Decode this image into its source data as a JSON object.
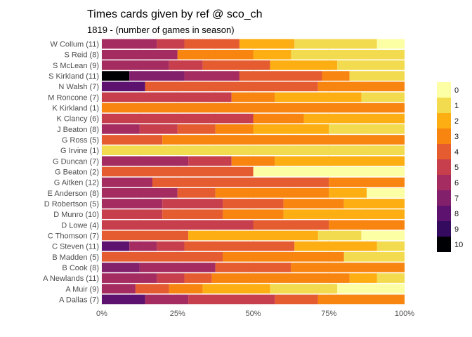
{
  "chart_data": {
    "type": "bar",
    "orientation": "horizontal",
    "stacked": true,
    "normalized": true,
    "title": "Times cards given by ref @ sco_ch",
    "subtitle": "1819 - (number of games in season)",
    "xlabel": "",
    "ylabel": "",
    "xlim": [
      0,
      100
    ],
    "x_ticks": [
      "0%",
      "25%",
      "50%",
      "75%",
      "100%"
    ],
    "grid": true,
    "legend_position": "right",
    "legend_title": "",
    "legend": [
      "0",
      "1",
      "2",
      "3",
      "4",
      "5",
      "6",
      "7",
      "8",
      "9",
      "10"
    ],
    "colors": {
      "0": "#fcffa4",
      "1": "#f3db4f",
      "2": "#fcae12",
      "3": "#f8850f",
      "4": "#e55c30",
      "5": "#c73e4c",
      "6": "#a52c60",
      "7": "#82206c",
      "8": "#5c126e",
      "9": "#340a5f",
      "10": "#000004"
    },
    "categories": [
      "W Collum (11)",
      "S Reid (8)",
      "S McLean (9)",
      "S Kirkland (11)",
      "N Walsh (7)",
      "M Roncone (7)",
      "K Kirkland (1)",
      "K Clancy (6)",
      "J Beaton (8)",
      "G Ross (5)",
      "G Irvine (1)",
      "G Duncan (7)",
      "G Beaton (2)",
      "G Aitken (12)",
      "E Anderson (8)",
      "D Robertson (5)",
      "D Munro (10)",
      "D Lowe (4)",
      "C Thomson (7)",
      "C Steven (11)",
      "B Madden (5)",
      "B Cook (8)",
      "A Newlands (11)",
      "A Muir (9)",
      "A Dallas (7)"
    ],
    "rows": [
      {
        "category": "W Collum (11)",
        "segments": [
          {
            "cards": 6,
            "pct": 18.2
          },
          {
            "cards": 5,
            "pct": 9.1
          },
          {
            "cards": 4,
            "pct": 18.2
          },
          {
            "cards": 2,
            "pct": 18.2
          },
          {
            "cards": 1,
            "pct": 27.3
          },
          {
            "cards": 0,
            "pct": 9.1
          }
        ]
      },
      {
        "category": "S Reid (8)",
        "segments": [
          {
            "cards": 6,
            "pct": 25
          },
          {
            "cards": 3,
            "pct": 25
          },
          {
            "cards": 2,
            "pct": 12.5
          },
          {
            "cards": 1,
            "pct": 37.5
          }
        ]
      },
      {
        "category": "S McLean (9)",
        "segments": [
          {
            "cards": 6,
            "pct": 22.2
          },
          {
            "cards": 5,
            "pct": 11.1
          },
          {
            "cards": 4,
            "pct": 22.2
          },
          {
            "cards": 2,
            "pct": 22.2
          },
          {
            "cards": 1,
            "pct": 22.2
          }
        ]
      },
      {
        "category": "S Kirkland (11)",
        "segments": [
          {
            "cards": 10,
            "pct": 9.1
          },
          {
            "cards": 7,
            "pct": 18.2
          },
          {
            "cards": 6,
            "pct": 18.2
          },
          {
            "cards": 4,
            "pct": 27.3
          },
          {
            "cards": 3,
            "pct": 9.1
          },
          {
            "cards": 1,
            "pct": 18.2
          }
        ]
      },
      {
        "category": "N Walsh (7)",
        "segments": [
          {
            "cards": 8,
            "pct": 14.3
          },
          {
            "cards": 4,
            "pct": 57.1
          },
          {
            "cards": 3,
            "pct": 28.6
          }
        ]
      },
      {
        "category": "M Roncone (7)",
        "segments": [
          {
            "cards": 5,
            "pct": 42.9
          },
          {
            "cards": 3,
            "pct": 14.3
          },
          {
            "cards": 2,
            "pct": 28.6
          },
          {
            "cards": 1,
            "pct": 14.3
          }
        ]
      },
      {
        "category": "K Kirkland (1)",
        "segments": [
          {
            "cards": 3,
            "pct": 100
          }
        ]
      },
      {
        "category": "K Clancy (6)",
        "segments": [
          {
            "cards": 5,
            "pct": 50
          },
          {
            "cards": 3,
            "pct": 16.7
          },
          {
            "cards": 2,
            "pct": 33.3
          }
        ]
      },
      {
        "category": "J Beaton (8)",
        "segments": [
          {
            "cards": 6,
            "pct": 12.5
          },
          {
            "cards": 5,
            "pct": 12.5
          },
          {
            "cards": 4,
            "pct": 12.5
          },
          {
            "cards": 3,
            "pct": 12.5
          },
          {
            "cards": 2,
            "pct": 25
          },
          {
            "cards": 1,
            "pct": 25
          }
        ]
      },
      {
        "category": "G Ross (5)",
        "segments": [
          {
            "cards": 4,
            "pct": 20
          },
          {
            "cards": 3,
            "pct": 80
          }
        ]
      },
      {
        "category": "G Irvine (1)",
        "segments": [
          {
            "cards": 1,
            "pct": 100
          }
        ]
      },
      {
        "category": "G Duncan (7)",
        "segments": [
          {
            "cards": 6,
            "pct": 28.6
          },
          {
            "cards": 5,
            "pct": 14.3
          },
          {
            "cards": 3,
            "pct": 14.3
          },
          {
            "cards": 2,
            "pct": 42.9
          }
        ]
      },
      {
        "category": "G Beaton (2)",
        "segments": [
          {
            "cards": 4,
            "pct": 50
          },
          {
            "cards": 0,
            "pct": 50
          }
        ]
      },
      {
        "category": "G Aitken (12)",
        "segments": [
          {
            "cards": 6,
            "pct": 16.7
          },
          {
            "cards": 4,
            "pct": 58.3
          },
          {
            "cards": 3,
            "pct": 25
          }
        ]
      },
      {
        "category": "E Anderson (8)",
        "segments": [
          {
            "cards": 6,
            "pct": 25
          },
          {
            "cards": 4,
            "pct": 12.5
          },
          {
            "cards": 3,
            "pct": 37.5
          },
          {
            "cards": 2,
            "pct": 12.5
          },
          {
            "cards": 0,
            "pct": 12.5
          }
        ]
      },
      {
        "category": "D Robertson (5)",
        "segments": [
          {
            "cards": 6,
            "pct": 20
          },
          {
            "cards": 5,
            "pct": 20
          },
          {
            "cards": 4,
            "pct": 20
          },
          {
            "cards": 3,
            "pct": 20
          },
          {
            "cards": 2,
            "pct": 20
          }
        ]
      },
      {
        "category": "D Munro (10)",
        "segments": [
          {
            "cards": 5,
            "pct": 20
          },
          {
            "cards": 4,
            "pct": 20
          },
          {
            "cards": 3,
            "pct": 20
          },
          {
            "cards": 2,
            "pct": 40
          }
        ]
      },
      {
        "category": "D Lowe (4)",
        "segments": [
          {
            "cards": 5,
            "pct": 50
          },
          {
            "cards": 4,
            "pct": 25
          },
          {
            "cards": 3,
            "pct": 25
          }
        ]
      },
      {
        "category": "C Thomson (7)",
        "segments": [
          {
            "cards": 4,
            "pct": 28.6
          },
          {
            "cards": 2,
            "pct": 42.9
          },
          {
            "cards": 1,
            "pct": 14.3
          },
          {
            "cards": 0,
            "pct": 14.3
          }
        ]
      },
      {
        "category": "C Steven (11)",
        "segments": [
          {
            "cards": 8,
            "pct": 9.1
          },
          {
            "cards": 6,
            "pct": 9.1
          },
          {
            "cards": 5,
            "pct": 9.1
          },
          {
            "cards": 4,
            "pct": 36.4
          },
          {
            "cards": 2,
            "pct": 27.3
          },
          {
            "cards": 1,
            "pct": 9.1
          }
        ]
      },
      {
        "category": "B Madden (5)",
        "segments": [
          {
            "cards": 4,
            "pct": 40
          },
          {
            "cards": 3,
            "pct": 40
          },
          {
            "cards": 1,
            "pct": 20
          }
        ]
      },
      {
        "category": "B Cook (8)",
        "segments": [
          {
            "cards": 7,
            "pct": 12.5
          },
          {
            "cards": 6,
            "pct": 25
          },
          {
            "cards": 4,
            "pct": 25
          },
          {
            "cards": 3,
            "pct": 37.5
          }
        ]
      },
      {
        "category": "A Newlands (11)",
        "segments": [
          {
            "cards": 6,
            "pct": 18.2
          },
          {
            "cards": 5,
            "pct": 9.1
          },
          {
            "cards": 4,
            "pct": 9.1
          },
          {
            "cards": 3,
            "pct": 45.5
          },
          {
            "cards": 2,
            "pct": 9.1
          },
          {
            "cards": 1,
            "pct": 9.1
          }
        ]
      },
      {
        "category": "A Muir (9)",
        "segments": [
          {
            "cards": 6,
            "pct": 11.1
          },
          {
            "cards": 4,
            "pct": 11.1
          },
          {
            "cards": 3,
            "pct": 11.1
          },
          {
            "cards": 2,
            "pct": 22.2
          },
          {
            "cards": 1,
            "pct": 22.2
          },
          {
            "cards": 0,
            "pct": 22.2
          }
        ]
      },
      {
        "category": "A Dallas (7)",
        "segments": [
          {
            "cards": 8,
            "pct": 14.3
          },
          {
            "cards": 6,
            "pct": 14.3
          },
          {
            "cards": 5,
            "pct": 28.6
          },
          {
            "cards": 4,
            "pct": 14.3
          },
          {
            "cards": 3,
            "pct": 28.6
          }
        ]
      }
    ]
  }
}
